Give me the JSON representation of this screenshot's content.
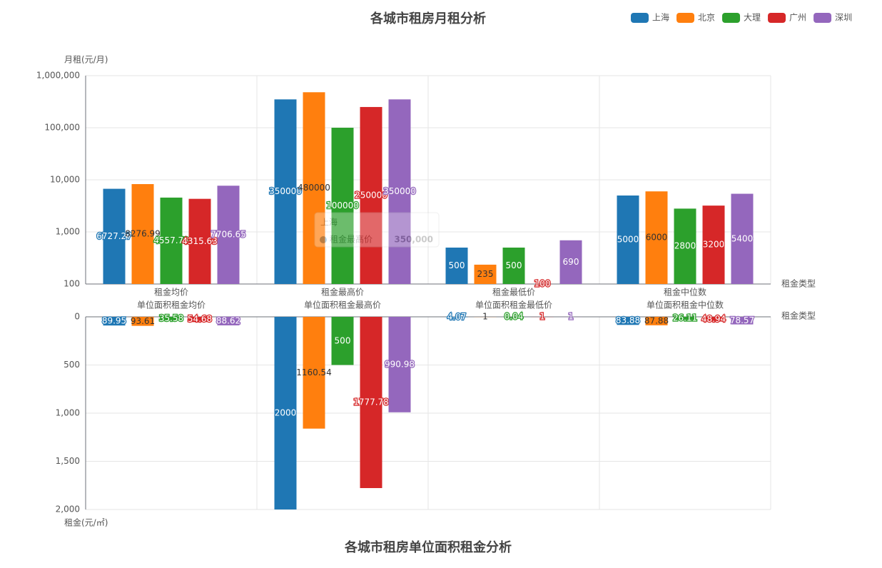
{
  "chart_data": [
    {
      "type": "bar",
      "title": "各城市租房月租分析",
      "y_label": "月租(元/月)",
      "x_label": "租金类型",
      "log_scale": true,
      "grid": true,
      "legend": "top-right",
      "categories": [
        "租金均价",
        "租金最高价",
        "租金最低价",
        "租金中位数"
      ],
      "series": [
        {
          "name": "上海",
          "color": "#1f77b4",
          "values": [
            6727.27,
            350000,
            500,
            5000
          ]
        },
        {
          "name": "北京",
          "color": "#ff7f0e",
          "values": [
            8276.99,
            480000,
            235,
            6000
          ]
        },
        {
          "name": "大理",
          "color": "#2ca02c",
          "values": [
            4557.73,
            100000,
            500,
            2800
          ]
        },
        {
          "name": "广州",
          "color": "#d62728",
          "values": [
            4315.63,
            250000,
            100,
            3200
          ]
        },
        {
          "name": "深圳",
          "color": "#9467bd",
          "values": [
            7706.65,
            350000,
            690,
            5400
          ]
        }
      ],
      "ylim": [
        100,
        1000000
      ],
      "yticks": [
        100,
        {
          "value": 1000,
          "label": "1,000"
        },
        {
          "value": 10000,
          "label": "10,000"
        },
        {
          "value": 100000,
          "label": "100,000"
        },
        {
          "value": 1000000,
          "label": "1,000,000"
        }
      ],
      "tooltip": {
        "title": "上海",
        "item": "租金最高价",
        "value": "350,000"
      }
    },
    {
      "type": "bar",
      "title": "各城市租房单位面积租金分析",
      "y_label": "租金(元/㎡)",
      "x_label": "租金类型",
      "inverse": true,
      "grid": true,
      "categories": [
        "单位面积租金均价",
        "单位面积租金最高价",
        "单位面积租金最低价",
        "单位面积租金中位数"
      ],
      "series": [
        {
          "values": [
            89.95,
            2000,
            4.07,
            83.88
          ]
        },
        {
          "values": [
            93.61,
            1160.54,
            1,
            87.88
          ]
        },
        {
          "values": [
            35.58,
            500,
            0.04,
            26.11
          ]
        },
        {
          "values": [
            54.68,
            1777.78,
            1,
            48.94
          ]
        },
        {
          "values": [
            88.62,
            990.98,
            1,
            78.57
          ]
        }
      ],
      "ylim": [
        0,
        2000
      ],
      "yticks": [
        0,
        500,
        {
          "value": 1000,
          "label": "1,000"
        },
        {
          "value": 1500,
          "label": "1,500"
        },
        {
          "value": 2000,
          "label": "2,000"
        }
      ]
    }
  ]
}
